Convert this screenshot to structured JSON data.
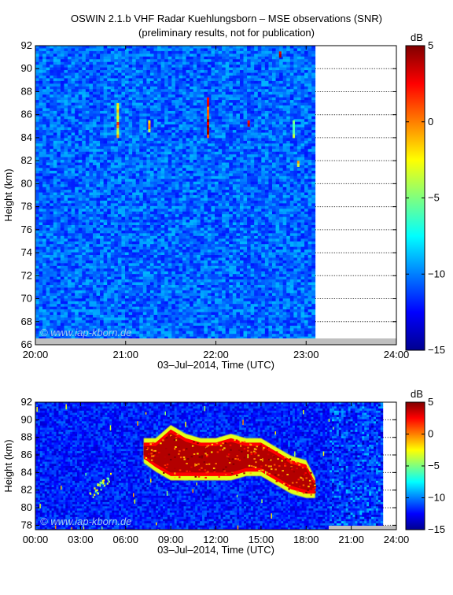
{
  "title_line1": "OSWIN 2.1.b VHF Radar Kuehlungsborn – MSE observations (SNR)",
  "title_line2": "(preliminary results, not for publication)",
  "colors": {
    "colormap": [
      "#00008f",
      "#0000ff",
      "#007fff",
      "#00ffff",
      "#7fff7f",
      "#ffff00",
      "#ff7f00",
      "#ff0000",
      "#800000"
    ],
    "background_level": -10.5,
    "no_data_bar": "#bfbfbf"
  },
  "chart_data": [
    {
      "type": "heatmap",
      "xlabel": "03–Jul–2014, Time (UTC)",
      "ylabel": "Height (km)",
      "x_ticks": [
        "20:00",
        "21:00",
        "22:00",
        "23:00",
        "24:00"
      ],
      "x_range_hours": [
        20,
        24
      ],
      "data_end_hour": 23.1,
      "y_ticks": [
        "66",
        "68",
        "70",
        "72",
        "74",
        "76",
        "78",
        "80",
        "82",
        "84",
        "86",
        "88",
        "90",
        "92"
      ],
      "y_range_km": [
        66,
        92
      ],
      "colorbar_label": "dB",
      "colorbar_ticks": [
        "5",
        "0",
        "−5",
        "−10",
        "−15"
      ],
      "colorbar_range": [
        -15,
        5
      ],
      "watermark": "© www.iap-kborn.de",
      "dotted_gridlines": true,
      "background_snr": -10.5,
      "echoes": [
        {
          "hour": 20.9,
          "height_min": 84,
          "height_max": 87,
          "snr": -1
        },
        {
          "hour": 21.25,
          "height_min": 84.5,
          "height_max": 85.5,
          "snr": -3
        },
        {
          "hour": 21.9,
          "height_min": 84,
          "height_max": 87.5,
          "snr": 2
        },
        {
          "hour": 22.35,
          "height_min": 85,
          "height_max": 85.5,
          "snr": 1
        },
        {
          "hour": 22.7,
          "height_min": 91,
          "height_max": 91.5,
          "snr": 3
        },
        {
          "hour": 22.85,
          "height_min": 84,
          "height_max": 85.5,
          "snr": -4
        },
        {
          "hour": 22.9,
          "height_min": 81.5,
          "height_max": 82,
          "snr": -2
        }
      ]
    },
    {
      "type": "heatmap",
      "xlabel": "03–Jul–2014, Time (UTC)",
      "ylabel": "Height (km)",
      "x_ticks": [
        "00:00",
        "03:00",
        "06:00",
        "09:00",
        "12:00",
        "15:00",
        "18:00",
        "21:00",
        "24:00"
      ],
      "x_range_hours": [
        0,
        24
      ],
      "data_end_hour": 23.1,
      "y_ticks": [
        "78",
        "80",
        "82",
        "84",
        "86",
        "88",
        "90",
        "92"
      ],
      "y_range_km": [
        77.5,
        92
      ],
      "colorbar_label": "dB",
      "colorbar_ticks": [
        "5",
        "0",
        "−5",
        "−10",
        "−15"
      ],
      "colorbar_range": [
        -15,
        5
      ],
      "watermark": "© www.iap-kborn.de",
      "dotted_gridlines": true,
      "background_snr": -12,
      "echo_layer": [
        {
          "hour": 7.2,
          "height_min": 85.5,
          "height_max": 87.5
        },
        {
          "hour": 8.0,
          "height_min": 84.5,
          "height_max": 87.5
        },
        {
          "hour": 9.0,
          "height_min": 83.5,
          "height_max": 89
        },
        {
          "hour": 10.0,
          "height_min": 83.5,
          "height_max": 88
        },
        {
          "hour": 11.0,
          "height_min": 83.5,
          "height_max": 87.5
        },
        {
          "hour": 12.0,
          "height_min": 83.5,
          "height_max": 87.5
        },
        {
          "hour": 13.0,
          "height_min": 83.5,
          "height_max": 88
        },
        {
          "hour": 14.0,
          "height_min": 84,
          "height_max": 87.5
        },
        {
          "hour": 15.0,
          "height_min": 84,
          "height_max": 87.5
        },
        {
          "hour": 16.0,
          "height_min": 83,
          "height_max": 86.5
        },
        {
          "hour": 17.0,
          "height_min": 82,
          "height_max": 85.5
        },
        {
          "hour": 18.0,
          "height_min": 81.5,
          "height_max": 85
        },
        {
          "hour": 18.6,
          "height_min": 81.5,
          "height_max": 83
        }
      ],
      "echo_core_snr": 4,
      "early_echo": {
        "hour_start": 3.5,
        "hour_end": 5.0,
        "height_min": 80.5,
        "height_max": 85,
        "snr": -4
      }
    }
  ]
}
